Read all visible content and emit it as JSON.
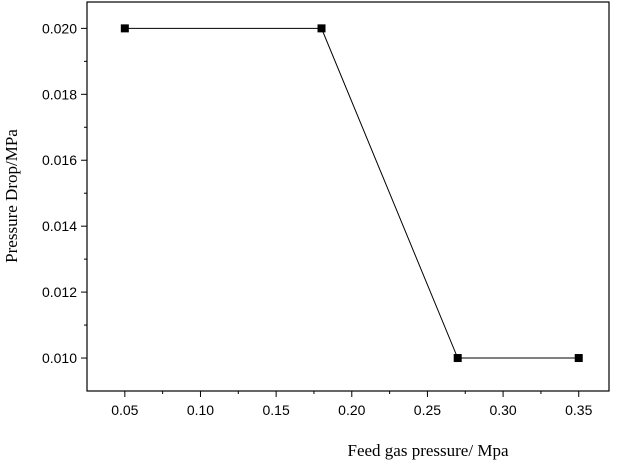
{
  "chart_data": {
    "type": "line",
    "title": "",
    "xlabel": "Feed gas pressure/ Mpa",
    "ylabel": "Pressure Drop/MPa",
    "xlim": [
      0.025,
      0.37
    ],
    "ylim": [
      0.009,
      0.0208
    ],
    "x_ticks": [
      "0.05",
      "0.10",
      "0.15",
      "0.20",
      "0.25",
      "0.30",
      "0.35"
    ],
    "x_tick_values": [
      0.05,
      0.1,
      0.15,
      0.2,
      0.25,
      0.3,
      0.35
    ],
    "y_ticks": [
      "0.010",
      "0.012",
      "0.014",
      "0.016",
      "0.018",
      "0.020"
    ],
    "y_tick_values": [
      0.01,
      0.012,
      0.014,
      0.016,
      0.018,
      0.02
    ],
    "grid": false,
    "legend": "none",
    "series": [
      {
        "marker": "square",
        "color": "#000000",
        "x": [
          0.05,
          0.18,
          0.27,
          0.35
        ],
        "y": [
          0.02,
          0.02,
          0.01,
          0.01
        ]
      }
    ]
  }
}
